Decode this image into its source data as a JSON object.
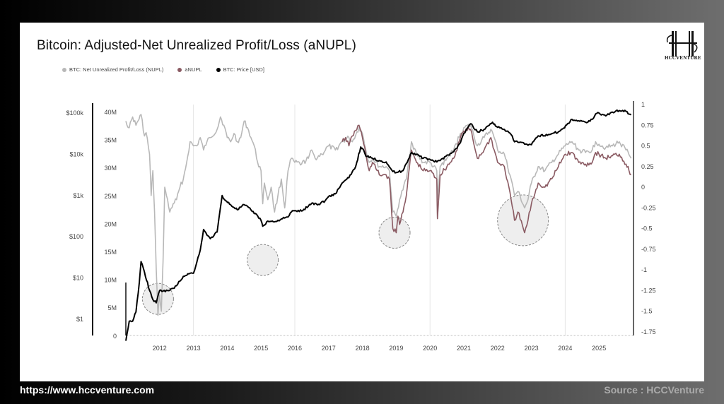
{
  "header": {
    "title": "Bitcoin: Adjusted-Net Unrealized Profit/Loss (aNUPL)",
    "logo_text": "HCCVENTURE"
  },
  "footer": {
    "url": "https://www.hccventure.com",
    "source": "Source : HCCVenture"
  },
  "colors": {
    "nupl": "#b8b8b8",
    "anupl": "#8a5a62",
    "price": "#000000",
    "highlight_fill": "#eeeeee",
    "highlight_stroke": "#888888"
  },
  "chart_data": {
    "type": "line",
    "title": "Bitcoin: Adjusted-Net Unrealized Profit/Loss (aNUPL)",
    "legend": [
      {
        "name": "BTC: Net Unrealized Profit/Loss (NUPL)",
        "color": "#b8b8b8"
      },
      {
        "name": "aNUPL",
        "color": "#8a5a62"
      },
      {
        "name": "BTC: Price [USD]",
        "color": "#000000"
      }
    ],
    "legend_position": "top-left",
    "x_ticks": [
      "2012",
      "2013",
      "2014",
      "2015",
      "2016",
      "2017",
      "2018",
      "2019",
      "2020",
      "2021",
      "2022",
      "2023",
      "2024",
      "2025"
    ],
    "xlim": [
      2011.0,
      2026.0
    ],
    "y_left_price_ticks": [
      "$100k",
      "$10k",
      "$1k",
      "$100",
      "$10",
      "$1"
    ],
    "y_left_price_scale": "log",
    "y_left_supply_ticks": [
      "40M",
      "35M",
      "30M",
      "25M",
      "20M",
      "15M",
      "10M",
      "5M",
      "0"
    ],
    "y_right_ticks": [
      "1",
      "0.75",
      "0.5",
      "0.25",
      "0",
      "-0.25",
      "-0.5",
      "-0.75",
      "-1",
      "-1.25",
      "-1.5",
      "-1.75"
    ],
    "y_right_lim": [
      -1.75,
      1.0
    ],
    "gridlines_x": [
      2013,
      2016,
      2020,
      2024
    ],
    "series": [
      {
        "name": "BTC: Net Unrealized Profit/Loss (NUPL)",
        "axis": "right",
        "points": [
          [
            2011.0,
            0.8
          ],
          [
            2011.1,
            0.72
          ],
          [
            2011.2,
            0.85
          ],
          [
            2011.3,
            0.75
          ],
          [
            2011.45,
            0.88
          ],
          [
            2011.55,
            0.62
          ],
          [
            2011.6,
            0.66
          ],
          [
            2011.7,
            0.4
          ],
          [
            2011.75,
            -0.1
          ],
          [
            2011.8,
            0.2
          ],
          [
            2011.85,
            -0.3
          ],
          [
            2011.9,
            -1.0
          ],
          [
            2011.95,
            -1.55
          ],
          [
            2012.0,
            -1.3
          ],
          [
            2012.05,
            -1.5
          ],
          [
            2012.1,
            -0.9
          ],
          [
            2012.15,
            0.0
          ],
          [
            2012.2,
            -0.1
          ],
          [
            2012.3,
            -0.3
          ],
          [
            2012.4,
            -0.2
          ],
          [
            2012.5,
            -0.15
          ],
          [
            2012.6,
            0.0
          ],
          [
            2012.7,
            0.1
          ],
          [
            2012.8,
            0.3
          ],
          [
            2012.9,
            0.55
          ],
          [
            2013.0,
            0.5
          ],
          [
            2013.1,
            0.5
          ],
          [
            2013.2,
            0.6
          ],
          [
            2013.3,
            0.45
          ],
          [
            2013.4,
            0.55
          ],
          [
            2013.5,
            0.6
          ],
          [
            2013.7,
            0.7
          ],
          [
            2013.8,
            0.85
          ],
          [
            2013.9,
            0.75
          ],
          [
            2014.0,
            0.6
          ],
          [
            2014.1,
            0.55
          ],
          [
            2014.2,
            0.65
          ],
          [
            2014.3,
            0.55
          ],
          [
            2014.4,
            0.6
          ],
          [
            2014.5,
            0.8
          ],
          [
            2014.6,
            0.72
          ],
          [
            2014.7,
            0.6
          ],
          [
            2014.8,
            0.5
          ],
          [
            2014.9,
            0.3
          ],
          [
            2015.0,
            0.2
          ],
          [
            2015.05,
            -0.2
          ],
          [
            2015.1,
            0.05
          ],
          [
            2015.2,
            -0.15
          ],
          [
            2015.3,
            0.0
          ],
          [
            2015.4,
            -0.3
          ],
          [
            2015.5,
            -0.1
          ],
          [
            2015.6,
            0.1
          ],
          [
            2015.7,
            -0.25
          ],
          [
            2015.8,
            0.2
          ],
          [
            2015.9,
            0.35
          ],
          [
            2016.0,
            0.3
          ],
          [
            2016.2,
            0.28
          ],
          [
            2016.4,
            0.35
          ],
          [
            2016.5,
            0.45
          ],
          [
            2016.6,
            0.35
          ],
          [
            2016.8,
            0.4
          ],
          [
            2017.0,
            0.5
          ],
          [
            2017.2,
            0.45
          ],
          [
            2017.4,
            0.55
          ],
          [
            2017.6,
            0.6
          ],
          [
            2017.7,
            0.55
          ],
          [
            2017.9,
            0.72
          ],
          [
            2018.0,
            0.65
          ],
          [
            2018.1,
            0.45
          ],
          [
            2018.2,
            0.3
          ],
          [
            2018.3,
            0.35
          ],
          [
            2018.5,
            0.25
          ],
          [
            2018.7,
            0.25
          ],
          [
            2018.8,
            0.2
          ],
          [
            2018.9,
            -0.3
          ],
          [
            2019.0,
            -0.35
          ],
          [
            2019.1,
            -0.15
          ],
          [
            2019.3,
            0.1
          ],
          [
            2019.45,
            0.55
          ],
          [
            2019.6,
            0.4
          ],
          [
            2019.8,
            0.3
          ],
          [
            2020.0,
            0.3
          ],
          [
            2020.2,
            0.2
          ],
          [
            2020.22,
            -0.15
          ],
          [
            2020.3,
            0.25
          ],
          [
            2020.5,
            0.35
          ],
          [
            2020.7,
            0.45
          ],
          [
            2020.9,
            0.65
          ],
          [
            2021.0,
            0.72
          ],
          [
            2021.2,
            0.75
          ],
          [
            2021.4,
            0.5
          ],
          [
            2021.6,
            0.6
          ],
          [
            2021.8,
            0.7
          ],
          [
            2021.9,
            0.6
          ],
          [
            2022.0,
            0.45
          ],
          [
            2022.2,
            0.4
          ],
          [
            2022.4,
            0.1
          ],
          [
            2022.5,
            -0.1
          ],
          [
            2022.6,
            -0.05
          ],
          [
            2022.8,
            -0.25
          ],
          [
            2022.9,
            -0.15
          ],
          [
            2023.0,
            0.05
          ],
          [
            2023.2,
            0.25
          ],
          [
            2023.4,
            0.2
          ],
          [
            2023.6,
            0.3
          ],
          [
            2023.8,
            0.4
          ],
          [
            2024.0,
            0.5
          ],
          [
            2024.2,
            0.55
          ],
          [
            2024.4,
            0.45
          ],
          [
            2024.6,
            0.42
          ],
          [
            2024.8,
            0.45
          ],
          [
            2024.9,
            0.55
          ],
          [
            2025.0,
            0.52
          ],
          [
            2025.2,
            0.48
          ],
          [
            2025.4,
            0.5
          ],
          [
            2025.6,
            0.55
          ],
          [
            2025.8,
            0.45
          ],
          [
            2025.95,
            0.35
          ]
        ]
      },
      {
        "name": "aNUPL",
        "axis": "right",
        "points": [
          [
            2017.4,
            0.55
          ],
          [
            2017.5,
            0.6
          ],
          [
            2017.6,
            0.5
          ],
          [
            2017.7,
            0.62
          ],
          [
            2017.9,
            0.75
          ],
          [
            2018.0,
            0.6
          ],
          [
            2018.1,
            0.4
          ],
          [
            2018.2,
            0.2
          ],
          [
            2018.3,
            0.3
          ],
          [
            2018.5,
            0.15
          ],
          [
            2018.7,
            0.15
          ],
          [
            2018.8,
            0.1
          ],
          [
            2018.9,
            -0.5
          ],
          [
            2019.0,
            -0.55
          ],
          [
            2019.05,
            -0.35
          ],
          [
            2019.1,
            -0.45
          ],
          [
            2019.3,
            -0.1
          ],
          [
            2019.45,
            0.45
          ],
          [
            2019.6,
            0.3
          ],
          [
            2019.8,
            0.2
          ],
          [
            2020.0,
            0.2
          ],
          [
            2020.2,
            0.1
          ],
          [
            2020.22,
            -0.38
          ],
          [
            2020.3,
            0.15
          ],
          [
            2020.5,
            0.25
          ],
          [
            2020.7,
            0.35
          ],
          [
            2020.9,
            0.6
          ],
          [
            2021.0,
            0.68
          ],
          [
            2021.2,
            0.7
          ],
          [
            2021.4,
            0.35
          ],
          [
            2021.6,
            0.45
          ],
          [
            2021.8,
            0.6
          ],
          [
            2021.9,
            0.45
          ],
          [
            2022.0,
            0.3
          ],
          [
            2022.2,
            0.25
          ],
          [
            2022.4,
            -0.15
          ],
          [
            2022.5,
            -0.4
          ],
          [
            2022.6,
            -0.3
          ],
          [
            2022.8,
            -0.55
          ],
          [
            2022.9,
            -0.4
          ],
          [
            2023.0,
            -0.2
          ],
          [
            2023.2,
            0.05
          ],
          [
            2023.4,
            0.0
          ],
          [
            2023.6,
            0.1
          ],
          [
            2023.8,
            0.25
          ],
          [
            2024.0,
            0.4
          ],
          [
            2024.2,
            0.42
          ],
          [
            2024.4,
            0.3
          ],
          [
            2024.6,
            0.28
          ],
          [
            2024.8,
            0.3
          ],
          [
            2024.9,
            0.42
          ],
          [
            2025.0,
            0.4
          ],
          [
            2025.2,
            0.35
          ],
          [
            2025.4,
            0.38
          ],
          [
            2025.6,
            0.4
          ],
          [
            2025.8,
            0.28
          ],
          [
            2025.95,
            0.15
          ]
        ]
      },
      {
        "name": "BTC: Price [USD]",
        "axis": "left-price",
        "points": [
          [
            2011.0,
            0.3
          ],
          [
            2011.1,
            0.9
          ],
          [
            2011.2,
            0.9
          ],
          [
            2011.3,
            1.5
          ],
          [
            2011.4,
            8
          ],
          [
            2011.45,
            25
          ],
          [
            2011.55,
            14
          ],
          [
            2011.7,
            5
          ],
          [
            2011.8,
            3
          ],
          [
            2011.9,
            2.5
          ],
          [
            2012.0,
            5
          ],
          [
            2012.1,
            4.8
          ],
          [
            2012.3,
            5
          ],
          [
            2012.5,
            6.5
          ],
          [
            2012.7,
            11
          ],
          [
            2012.9,
            13
          ],
          [
            2013.0,
            13
          ],
          [
            2013.2,
            47
          ],
          [
            2013.3,
            150
          ],
          [
            2013.4,
            110
          ],
          [
            2013.5,
            90
          ],
          [
            2013.7,
            130
          ],
          [
            2013.85,
            1000
          ],
          [
            2013.95,
            750
          ],
          [
            2014.1,
            600
          ],
          [
            2014.3,
            450
          ],
          [
            2014.5,
            600
          ],
          [
            2014.7,
            450
          ],
          [
            2014.9,
            320
          ],
          [
            2015.0,
            250
          ],
          [
            2015.05,
            180
          ],
          [
            2015.2,
            240
          ],
          [
            2015.4,
            230
          ],
          [
            2015.6,
            270
          ],
          [
            2015.8,
            300
          ],
          [
            2015.9,
            400
          ],
          [
            2016.0,
            430
          ],
          [
            2016.2,
            420
          ],
          [
            2016.4,
            550
          ],
          [
            2016.5,
            650
          ],
          [
            2016.7,
            610
          ],
          [
            2016.9,
            750
          ],
          [
            2017.0,
            950
          ],
          [
            2017.2,
            1100
          ],
          [
            2017.4,
            2000
          ],
          [
            2017.6,
            2700
          ],
          [
            2017.8,
            5000
          ],
          [
            2017.95,
            15000
          ],
          [
            2018.0,
            14000
          ],
          [
            2018.1,
            9000
          ],
          [
            2018.3,
            8000
          ],
          [
            2018.5,
            7000
          ],
          [
            2018.7,
            6500
          ],
          [
            2018.9,
            3800
          ],
          [
            2019.0,
            3600
          ],
          [
            2019.2,
            4000
          ],
          [
            2019.45,
            11000
          ],
          [
            2019.6,
            10000
          ],
          [
            2019.8,
            8000
          ],
          [
            2020.0,
            7500
          ],
          [
            2020.2,
            6500
          ],
          [
            2020.3,
            7000
          ],
          [
            2020.5,
            9500
          ],
          [
            2020.7,
            11500
          ],
          [
            2020.9,
            19000
          ],
          [
            2021.0,
            32000
          ],
          [
            2021.2,
            55000
          ],
          [
            2021.4,
            35000
          ],
          [
            2021.6,
            40000
          ],
          [
            2021.85,
            60000
          ],
          [
            2022.0,
            45000
          ],
          [
            2022.2,
            40000
          ],
          [
            2022.4,
            30000
          ],
          [
            2022.5,
            20000
          ],
          [
            2022.7,
            19500
          ],
          [
            2022.9,
            16500
          ],
          [
            2023.0,
            17000
          ],
          [
            2023.2,
            28000
          ],
          [
            2023.5,
            30000
          ],
          [
            2023.8,
            35000
          ],
          [
            2023.95,
            43000
          ],
          [
            2024.2,
            70000
          ],
          [
            2024.4,
            65000
          ],
          [
            2024.6,
            60000
          ],
          [
            2024.8,
            70000
          ],
          [
            2024.9,
            95000
          ],
          [
            2025.0,
            100000
          ],
          [
            2025.2,
            85000
          ],
          [
            2025.4,
            105000
          ],
          [
            2025.6,
            115000
          ],
          [
            2025.8,
            110000
          ],
          [
            2025.95,
            90000
          ]
        ]
      }
    ],
    "annotations": [
      {
        "type": "circle-highlight",
        "x": 2011.95,
        "y_right": -1.35,
        "label": ""
      },
      {
        "type": "circle-highlight",
        "x": 2015.05,
        "y_right": -0.88,
        "label": ""
      },
      {
        "type": "circle-highlight",
        "x": 2018.95,
        "y_right": -0.55,
        "label": ""
      },
      {
        "type": "circle-highlight",
        "x": 2022.75,
        "y_right": -0.4,
        "label": ""
      }
    ]
  }
}
